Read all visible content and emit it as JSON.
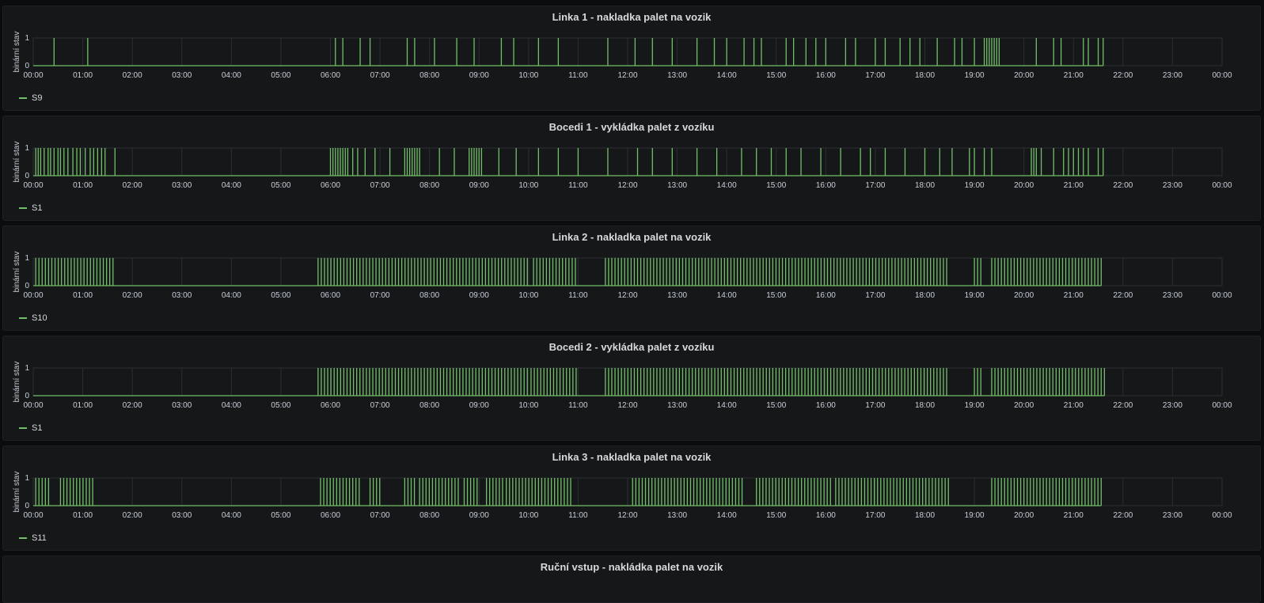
{
  "chart_data": [
    {
      "type": "line",
      "title": "Linka 1 - nakladka palet na vozik",
      "ylabel": "binární stav",
      "ylim": [
        0,
        1
      ],
      "y_ticks": [
        "0",
        "1"
      ],
      "x_ticks": [
        "00:00",
        "01:00",
        "02:00",
        "03:00",
        "04:00",
        "05:00",
        "06:00",
        "07:00",
        "08:00",
        "09:00",
        "10:00",
        "11:00",
        "12:00",
        "13:00",
        "14:00",
        "15:00",
        "16:00",
        "17:00",
        "18:00",
        "19:00",
        "20:00",
        "21:00",
        "22:00",
        "23:00",
        "00:00"
      ],
      "xlim_hours": [
        0,
        24
      ],
      "grid": true,
      "legend_position": "bottom-left",
      "series": [
        {
          "name": "S9",
          "color": "#73bf69",
          "pulse_hours": [
            0.42,
            1.1,
            6.1,
            6.25,
            6.6,
            6.8,
            7.55,
            7.7,
            8.1,
            8.55,
            8.9,
            9.45,
            9.7,
            10.2,
            10.6,
            11.6,
            12.15,
            12.5,
            12.9,
            13.4,
            13.75,
            14.0,
            14.35,
            14.55,
            14.7,
            15.2,
            15.35,
            15.6,
            15.8,
            16.0,
            16.4,
            16.6,
            17.0,
            17.2,
            17.5,
            17.7,
            17.9,
            18.25,
            18.6,
            18.75,
            19.0,
            19.2,
            19.25,
            19.3,
            19.35,
            19.4,
            19.45,
            19.5,
            20.25,
            20.6,
            20.75,
            21.2,
            21.3,
            21.5,
            21.6
          ]
        }
      ]
    },
    {
      "type": "line",
      "title": "Bocedi 1 - vykládka palet z vozíku",
      "ylabel": "binární stav",
      "ylim": [
        0,
        1
      ],
      "y_ticks": [
        "0",
        "1"
      ],
      "x_ticks": [
        "00:00",
        "01:00",
        "02:00",
        "03:00",
        "04:00",
        "05:00",
        "06:00",
        "07:00",
        "08:00",
        "09:00",
        "10:00",
        "11:00",
        "12:00",
        "13:00",
        "14:00",
        "15:00",
        "16:00",
        "17:00",
        "18:00",
        "19:00",
        "20:00",
        "21:00",
        "22:00",
        "23:00",
        "00:00"
      ],
      "xlim_hours": [
        0,
        24
      ],
      "grid": true,
      "legend_position": "bottom-left",
      "series": [
        {
          "name": "S1",
          "color": "#73bf69",
          "pulse_hours": [
            0.05,
            0.1,
            0.15,
            0.22,
            0.3,
            0.35,
            0.42,
            0.5,
            0.55,
            0.62,
            0.7,
            0.8,
            0.88,
            0.95,
            1.05,
            1.15,
            1.22,
            1.3,
            1.38,
            1.45,
            1.65,
            6.0,
            6.05,
            6.1,
            6.15,
            6.2,
            6.25,
            6.3,
            6.35,
            6.45,
            6.55,
            6.7,
            6.9,
            7.2,
            7.5,
            7.55,
            7.6,
            7.65,
            7.7,
            7.75,
            7.8,
            8.2,
            8.5,
            8.8,
            8.85,
            8.9,
            8.95,
            9.0,
            9.05,
            9.4,
            9.75,
            10.2,
            10.6,
            11.0,
            11.6,
            12.2,
            12.5,
            12.9,
            13.4,
            13.8,
            14.3,
            14.6,
            14.9,
            15.2,
            15.5,
            15.9,
            16.3,
            16.7,
            16.9,
            17.2,
            17.6,
            18.0,
            18.3,
            18.55,
            18.9,
            19.0,
            19.2,
            19.35,
            20.15,
            20.2,
            20.25,
            20.35,
            20.6,
            20.8,
            20.9,
            21.0,
            21.1,
            21.2,
            21.3,
            21.5,
            21.6
          ]
        }
      ]
    },
    {
      "type": "line",
      "title": "Linka 2 - nakladka palet na vozik",
      "ylabel": "binární stav",
      "ylim": [
        0,
        1
      ],
      "y_ticks": [
        "0",
        "1"
      ],
      "x_ticks": [
        "00:00",
        "01:00",
        "02:00",
        "03:00",
        "04:00",
        "05:00",
        "06:00",
        "07:00",
        "08:00",
        "09:00",
        "10:00",
        "11:00",
        "12:00",
        "13:00",
        "14:00",
        "15:00",
        "16:00",
        "17:00",
        "18:00",
        "19:00",
        "20:00",
        "21:00",
        "22:00",
        "23:00",
        "00:00"
      ],
      "xlim_hours": [
        0,
        24
      ],
      "grid": true,
      "legend_position": "bottom-left",
      "series": [
        {
          "name": "S10",
          "color": "#73bf69",
          "dense_ranges_hours": [
            [
              0.05,
              1.65
            ],
            [
              5.75,
              10.0
            ],
            [
              10.1,
              10.95
            ],
            [
              11.55,
              18.5
            ],
            [
              19.0,
              19.15
            ],
            [
              19.35,
              21.6
            ]
          ]
        }
      ]
    },
    {
      "type": "line",
      "title": "Bocedi 2 - vykládka palet z vozíku",
      "ylabel": "binární stav",
      "ylim": [
        0,
        1
      ],
      "y_ticks": [
        "0",
        "1"
      ],
      "x_ticks": [
        "00:00",
        "01:00",
        "02:00",
        "03:00",
        "04:00",
        "05:00",
        "06:00",
        "07:00",
        "08:00",
        "09:00",
        "10:00",
        "11:00",
        "12:00",
        "13:00",
        "14:00",
        "15:00",
        "16:00",
        "17:00",
        "18:00",
        "19:00",
        "20:00",
        "21:00",
        "22:00",
        "23:00",
        "00:00"
      ],
      "xlim_hours": [
        0,
        24
      ],
      "grid": true,
      "legend_position": "bottom-left",
      "series": [
        {
          "name": "S1",
          "color": "#73bf69",
          "dense_ranges_hours": [
            [
              5.75,
              10.0
            ],
            [
              10.05,
              11.0
            ],
            [
              11.55,
              18.5
            ],
            [
              19.0,
              19.15
            ],
            [
              19.35,
              21.65
            ]
          ]
        }
      ]
    },
    {
      "type": "line",
      "title": "Linka 3 - nakladka palet na vozik",
      "ylabel": "binární stav",
      "ylim": [
        0,
        1
      ],
      "y_ticks": [
        "0",
        "1"
      ],
      "x_ticks": [
        "00:00",
        "01:00",
        "02:00",
        "03:00",
        "04:00",
        "05:00",
        "06:00",
        "07:00",
        "08:00",
        "09:00",
        "10:00",
        "11:00",
        "12:00",
        "13:00",
        "14:00",
        "15:00",
        "16:00",
        "17:00",
        "18:00",
        "19:00",
        "20:00",
        "21:00",
        "22:00",
        "23:00",
        "00:00"
      ],
      "xlim_hours": [
        0,
        24
      ],
      "grid": true,
      "legend_position": "bottom-left",
      "series": [
        {
          "name": "S11",
          "color": "#73bf69",
          "dense_ranges_hours": [
            [
              0.05,
              0.35
            ],
            [
              0.55,
              1.2
            ],
            [
              5.8,
              6.6
            ],
            [
              6.8,
              7.0
            ],
            [
              7.5,
              7.7
            ],
            [
              7.8,
              8.6
            ],
            [
              8.7,
              9.0
            ],
            [
              9.15,
              9.5
            ],
            [
              9.55,
              10.85
            ],
            [
              12.1,
              14.35
            ],
            [
              14.6,
              16.1
            ],
            [
              16.2,
              18.5
            ],
            [
              19.35,
              21.6
            ]
          ]
        }
      ]
    }
  ],
  "partial_panel": {
    "title": "Ruční vstup - nakládka palet na vozik"
  }
}
